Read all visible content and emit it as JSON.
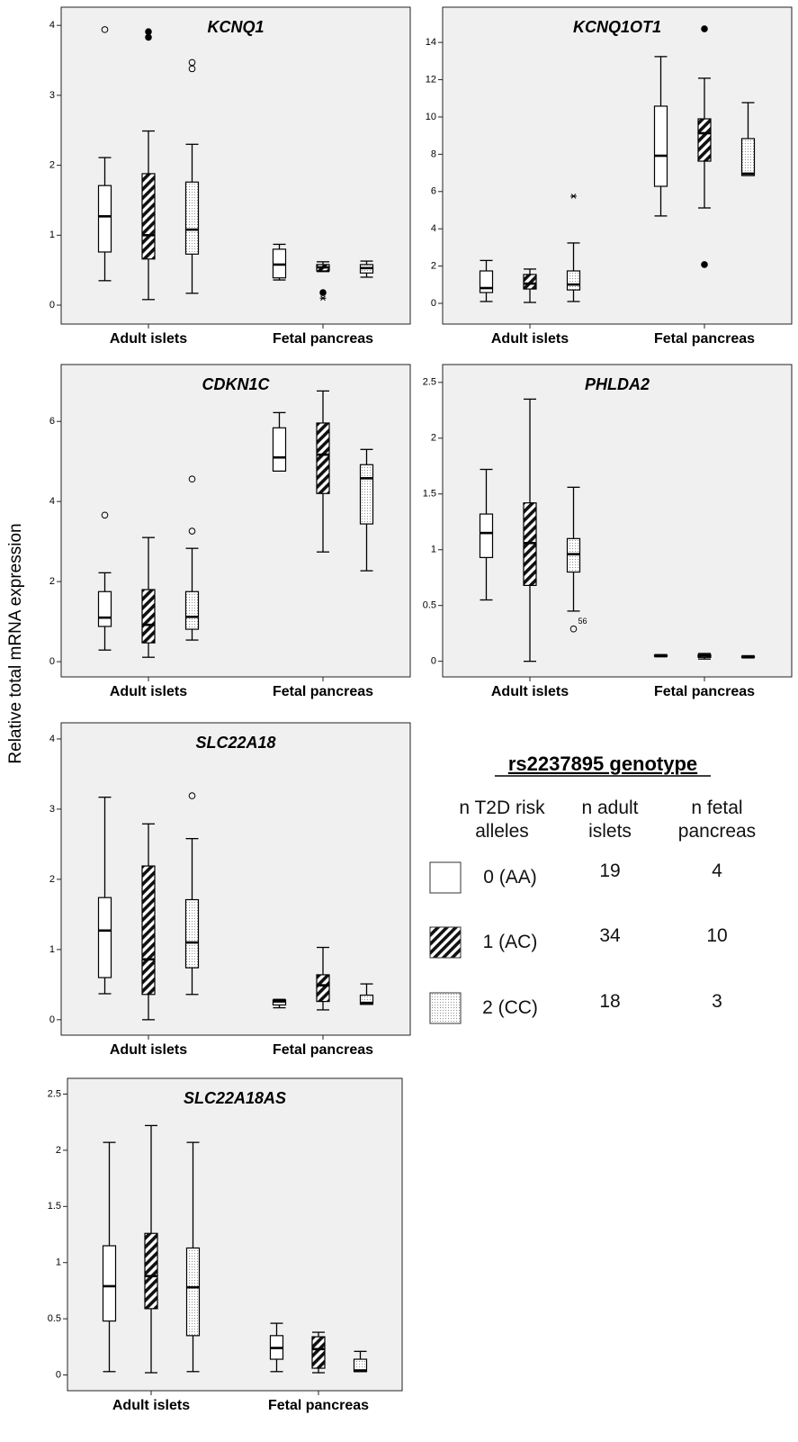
{
  "y_label": "Relative total mRNA expression",
  "chart_data": [
    {
      "type": "boxplot",
      "title": "KCNQ1",
      "categories": [
        "Adult islets",
        "Fetal pancreas"
      ],
      "ylim": [
        -0.27,
        4.26
      ],
      "yticks": [
        0,
        1,
        2,
        3,
        4
      ],
      "series": [
        {
          "pattern": "white",
          "boxes": [
            {
              "min": 0.35,
              "q1": 0.76,
              "median": 1.27,
              "q3": 1.71,
              "max": 2.11,
              "outliers": [
                {
                  "value": 3.94,
                  "marker": "circle"
                }
              ]
            },
            {
              "min": 0.36,
              "q1": 0.39,
              "median": 0.58,
              "q3": 0.8,
              "max": 0.87
            }
          ]
        },
        {
          "pattern": "hatch",
          "boxes": [
            {
              "min": 0.08,
              "q1": 0.66,
              "median": 1.0,
              "q3": 1.88,
              "max": 2.49,
              "outliers": [
                {
                  "value": 3.91,
                  "marker": "filled"
                },
                {
                  "value": 3.83,
                  "marker": "filled"
                }
              ]
            },
            {
              "min": 0.48,
              "q1": 0.49,
              "median": 0.54,
              "q3": 0.58,
              "max": 0.62,
              "outliers": [
                {
                  "value": 0.18,
                  "marker": "filled"
                },
                {
                  "value": 0.1,
                  "marker": "star"
                }
              ]
            }
          ]
        },
        {
          "pattern": "dots",
          "boxes": [
            {
              "min": 0.17,
              "q1": 0.73,
              "median": 1.08,
              "q3": 1.76,
              "max": 2.3,
              "outliers": [
                {
                  "value": 3.47,
                  "marker": "circle"
                },
                {
                  "value": 3.38,
                  "marker": "circle"
                }
              ]
            },
            {
              "min": 0.4,
              "q1": 0.46,
              "median": 0.53,
              "q3": 0.58,
              "max": 0.63
            }
          ]
        }
      ]
    },
    {
      "type": "boxplot",
      "title": "KCNQ1OT1",
      "categories": [
        "Adult islets",
        "Fetal pancreas"
      ],
      "ylim": [
        -1.11,
        15.89
      ],
      "yticks": [
        0,
        2,
        4,
        6,
        8,
        10,
        12,
        14
      ],
      "series": [
        {
          "pattern": "white",
          "boxes": [
            {
              "min": 0.1,
              "q1": 0.58,
              "median": 0.82,
              "q3": 1.74,
              "max": 2.3
            },
            {
              "min": 4.69,
              "q1": 6.28,
              "median": 7.92,
              "q3": 10.58,
              "max": 13.24
            }
          ]
        },
        {
          "pattern": "hatch",
          "boxes": [
            {
              "min": 0.05,
              "q1": 0.77,
              "median": 1.06,
              "q3": 1.55,
              "max": 1.84
            },
            {
              "min": 5.12,
              "q1": 7.63,
              "median": 9.13,
              "q3": 9.9,
              "max": 12.08,
              "outliers": [
                {
                  "value": 14.73,
                  "marker": "filled"
                },
                {
                  "value": 2.08,
                  "marker": "filled"
                }
              ]
            }
          ]
        },
        {
          "pattern": "dots",
          "boxes": [
            {
              "min": 0.1,
              "q1": 0.72,
              "median": 1.01,
              "q3": 1.74,
              "max": 3.24,
              "outliers": [
                {
                  "value": 5.75,
                  "marker": "star"
                }
              ]
            },
            {
              "min": 6.86,
              "q1": 6.86,
              "median": 6.96,
              "q3": 8.84,
              "max": 10.77
            }
          ]
        }
      ]
    },
    {
      "type": "boxplot",
      "title": "CDKN1C",
      "categories": [
        "Adult islets",
        "Fetal pancreas"
      ],
      "ylim": [
        -0.38,
        7.42
      ],
      "yticks": [
        0,
        2,
        4,
        6
      ],
      "series": [
        {
          "pattern": "white",
          "boxes": [
            {
              "min": 0.29,
              "q1": 0.88,
              "median": 1.1,
              "q3": 1.75,
              "max": 2.22,
              "outliers": [
                {
                  "value": 3.66,
                  "marker": "circle"
                }
              ]
            },
            {
              "min": 4.76,
              "q1": 4.76,
              "median": 5.1,
              "q3": 5.84,
              "max": 6.22
            }
          ]
        },
        {
          "pattern": "hatch",
          "boxes": [
            {
              "min": 0.11,
              "q1": 0.47,
              "median": 0.92,
              "q3": 1.8,
              "max": 3.1
            },
            {
              "min": 2.74,
              "q1": 4.2,
              "median": 5.17,
              "q3": 5.96,
              "max": 6.76
            }
          ]
        },
        {
          "pattern": "dots",
          "boxes": [
            {
              "min": 0.54,
              "q1": 0.81,
              "median": 1.12,
              "q3": 1.75,
              "max": 2.83,
              "outliers": [
                {
                  "value": 4.56,
                  "marker": "circle"
                },
                {
                  "value": 3.26,
                  "marker": "circle"
                }
              ]
            },
            {
              "min": 2.27,
              "q1": 3.44,
              "median": 4.58,
              "q3": 4.92,
              "max": 5.3
            }
          ]
        }
      ]
    },
    {
      "type": "boxplot",
      "title": "PHLDA2",
      "categories": [
        "Adult islets",
        "Fetal pancreas"
      ],
      "ylim": [
        -0.14,
        2.66
      ],
      "yticks": [
        0,
        0.5,
        1,
        1.5,
        2,
        2.5
      ],
      "series": [
        {
          "pattern": "white",
          "boxes": [
            {
              "min": 0.55,
              "q1": 0.93,
              "median": 1.15,
              "q3": 1.32,
              "max": 1.72
            },
            {
              "min": 0.04,
              "q1": 0.045,
              "median": 0.05,
              "q3": 0.055,
              "max": 0.06
            }
          ]
        },
        {
          "pattern": "hatch",
          "boxes": [
            {
              "min": 0,
              "q1": 0.68,
              "median": 1.06,
              "q3": 1.42,
              "max": 2.35
            },
            {
              "min": 0.02,
              "q1": 0.035,
              "median": 0.05,
              "q3": 0.06,
              "max": 0.07
            }
          ]
        },
        {
          "pattern": "dots",
          "boxes": [
            {
              "min": 0.45,
              "q1": 0.8,
              "median": 0.96,
              "q3": 1.1,
              "max": 1.56,
              "outliers": [
                {
                  "value": 0.29,
                  "marker": "circle",
                  "label": "56"
                }
              ]
            },
            {
              "min": 0.03,
              "q1": 0.035,
              "median": 0.04,
              "q3": 0.045,
              "max": 0.05
            }
          ]
        }
      ]
    },
    {
      "type": "boxplot",
      "title": "SLC22A18",
      "categories": [
        "Adult islets",
        "Fetal pancreas"
      ],
      "ylim": [
        -0.22,
        4.23
      ],
      "yticks": [
        0,
        1,
        2,
        3,
        4
      ],
      "series": [
        {
          "pattern": "white",
          "boxes": [
            {
              "min": 0.37,
              "q1": 0.6,
              "median": 1.27,
              "q3": 1.74,
              "max": 3.17
            },
            {
              "min": 0.17,
              "q1": 0.21,
              "median": 0.26,
              "q3": 0.28,
              "max": 0.29
            }
          ]
        },
        {
          "pattern": "hatch",
          "boxes": [
            {
              "min": 0,
              "q1": 0.36,
              "median": 0.86,
              "q3": 2.19,
              "max": 2.79
            },
            {
              "min": 0.14,
              "q1": 0.26,
              "median": 0.49,
              "q3": 0.64,
              "max": 1.03
            }
          ]
        },
        {
          "pattern": "dots",
          "boxes": [
            {
              "min": 0.36,
              "q1": 0.74,
              "median": 1.1,
              "q3": 1.71,
              "max": 2.58,
              "outliers": [
                {
                  "value": 3.19,
                  "marker": "circle"
                }
              ]
            },
            {
              "min": 0.22,
              "q1": 0.22,
              "median": 0.24,
              "q3": 0.35,
              "max": 0.51
            }
          ]
        }
      ]
    },
    {
      "type": "boxplot",
      "title": "SLC22A18AS",
      "categories": [
        "Adult islets",
        "Fetal pancreas"
      ],
      "ylim": [
        -0.14,
        2.64
      ],
      "yticks": [
        0,
        0.5,
        1,
        1.5,
        2,
        2.5
      ],
      "series": [
        {
          "pattern": "white",
          "boxes": [
            {
              "min": 0.03,
              "q1": 0.48,
              "median": 0.79,
              "q3": 1.15,
              "max": 2.07
            },
            {
              "min": 0.03,
              "q1": 0.14,
              "median": 0.24,
              "q3": 0.35,
              "max": 0.46
            }
          ]
        },
        {
          "pattern": "hatch",
          "boxes": [
            {
              "min": 0.02,
              "q1": 0.59,
              "median": 0.88,
              "q3": 1.26,
              "max": 2.22
            },
            {
              "min": 0.02,
              "q1": 0.06,
              "median": 0.23,
              "q3": 0.34,
              "max": 0.38
            }
          ]
        },
        {
          "pattern": "dots",
          "boxes": [
            {
              "min": 0.03,
              "q1": 0.35,
              "median": 0.78,
              "q3": 1.13,
              "max": 2.07
            },
            {
              "min": 0.03,
              "q1": 0.03,
              "median": 0.04,
              "q3": 0.14,
              "max": 0.21
            }
          ]
        }
      ]
    }
  ],
  "legend": {
    "title": "rs2237895 genotype",
    "headers": [
      "n T2D risk alleles",
      "n adult islets",
      "n fetal pancreas"
    ],
    "rows": [
      {
        "genotype": "0 (AA)",
        "pattern": "white",
        "adult": 19,
        "fetal": 4
      },
      {
        "genotype": "1 (AC)",
        "pattern": "hatch",
        "adult": 34,
        "fetal": 10
      },
      {
        "genotype": "2 (CC)",
        "pattern": "dots",
        "adult": 18,
        "fetal": 3
      }
    ]
  }
}
